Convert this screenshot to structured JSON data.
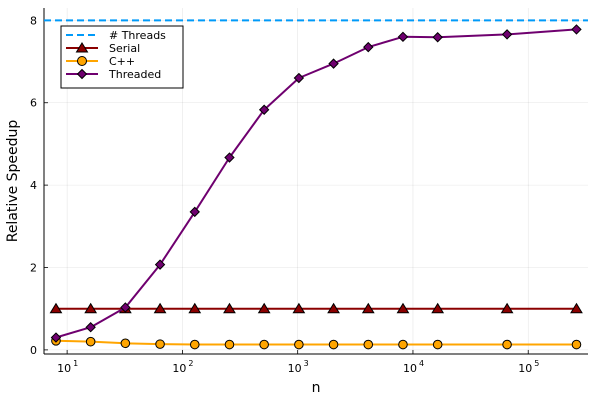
{
  "chart_data": {
    "type": "line",
    "xlabel": "n",
    "ylabel": "Relative Speedup",
    "xscale": "log10",
    "xlim": [
      6.3,
      330000
    ],
    "ylim": [
      -0.1,
      8.3
    ],
    "x_ticks": [
      {
        "base": "10",
        "exp": "1",
        "value": 10
      },
      {
        "base": "10",
        "exp": "2",
        "value": 100
      },
      {
        "base": "10",
        "exp": "3",
        "value": 1000
      },
      {
        "base": "10",
        "exp": "4",
        "value": 10000
      },
      {
        "base": "10",
        "exp": "5",
        "value": 100000
      }
    ],
    "y_ticks": [
      0,
      2,
      4,
      6,
      8
    ],
    "grid": true,
    "legend_position": "top-left",
    "colors": {
      "threads": "#009af9",
      "serial": "#8b0000",
      "cpp": "#ffa500",
      "threaded": "#6f006f"
    },
    "threads_line": {
      "name": "# Threads",
      "value": 8,
      "style": "dashed"
    },
    "series": [
      {
        "name": "Serial",
        "marker": "triangle",
        "x": [
          8,
          16,
          32,
          64,
          128,
          256,
          512,
          1024,
          2048,
          4096,
          8192,
          16384,
          65536,
          262144
        ],
        "y": [
          1,
          1,
          1,
          1,
          1,
          1,
          1,
          1,
          1,
          1,
          1,
          1,
          1,
          1
        ]
      },
      {
        "name": "C++",
        "marker": "circle",
        "x": [
          8,
          16,
          32,
          64,
          128,
          256,
          512,
          1024,
          2048,
          4096,
          8192,
          16384,
          65536,
          262144
        ],
        "y": [
          0.22,
          0.2,
          0.16,
          0.14,
          0.13,
          0.13,
          0.13,
          0.13,
          0.13,
          0.13,
          0.13,
          0.13,
          0.13,
          0.13
        ]
      },
      {
        "name": "Threaded",
        "marker": "diamond",
        "x": [
          8,
          16,
          32,
          64,
          128,
          256,
          512,
          1024,
          2048,
          4096,
          8192,
          16384,
          65536,
          262144
        ],
        "y": [
          0.3,
          0.55,
          1.03,
          2.07,
          3.35,
          4.67,
          5.83,
          6.6,
          6.95,
          7.35,
          7.6,
          7.59,
          7.66,
          7.78
        ]
      }
    ]
  }
}
